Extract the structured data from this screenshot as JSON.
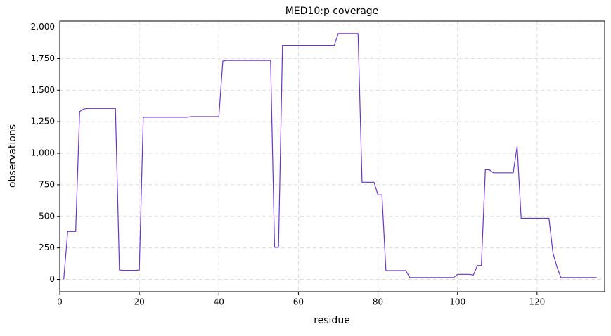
{
  "chart_data": {
    "type": "line",
    "title": "MED10:p coverage",
    "x_label": "residue",
    "y_label": "observations",
    "x": [
      1,
      2,
      3,
      4,
      5,
      6,
      7,
      8,
      9,
      10,
      11,
      12,
      13,
      14,
      15,
      16,
      17,
      18,
      19,
      20,
      21,
      22,
      23,
      24,
      25,
      26,
      27,
      28,
      29,
      30,
      31,
      32,
      33,
      34,
      35,
      36,
      37,
      38,
      39,
      40,
      41,
      42,
      43,
      44,
      45,
      46,
      47,
      48,
      49,
      50,
      51,
      52,
      53,
      54,
      55,
      56,
      57,
      58,
      59,
      60,
      61,
      62,
      63,
      64,
      65,
      66,
      67,
      68,
      69,
      70,
      71,
      72,
      73,
      74,
      75,
      76,
      77,
      78,
      79,
      80,
      81,
      82,
      83,
      84,
      85,
      86,
      87,
      88,
      89,
      90,
      91,
      92,
      93,
      94,
      95,
      96,
      97,
      98,
      99,
      100,
      101,
      102,
      103,
      104,
      105,
      106,
      107,
      108,
      109,
      110,
      111,
      112,
      113,
      114,
      115,
      116,
      117,
      118,
      119,
      120,
      121,
      122,
      123,
      124,
      125,
      126,
      127,
      128,
      129,
      130,
      131,
      132,
      133,
      134,
      135
    ],
    "series": [
      {
        "name": "MED10:p",
        "color": "#6a35c8",
        "values": [
          0,
          380,
          380,
          380,
          1330,
          1350,
          1355,
          1355,
          1355,
          1355,
          1355,
          1355,
          1355,
          1355,
          75,
          72,
          72,
          72,
          72,
          75,
          1285,
          1285,
          1285,
          1285,
          1285,
          1285,
          1285,
          1285,
          1285,
          1285,
          1285,
          1285,
          1290,
          1290,
          1290,
          1290,
          1290,
          1290,
          1290,
          1290,
          1730,
          1735,
          1735,
          1735,
          1735,
          1735,
          1735,
          1735,
          1735,
          1735,
          1735,
          1735,
          1735,
          255,
          255,
          1855,
          1855,
          1855,
          1855,
          1855,
          1855,
          1855,
          1855,
          1855,
          1855,
          1855,
          1855,
          1855,
          1855,
          1948,
          1948,
          1948,
          1948,
          1948,
          1948,
          770,
          770,
          770,
          770,
          670,
          670,
          70,
          70,
          70,
          70,
          70,
          70,
          15,
          15,
          15,
          15,
          15,
          15,
          15,
          15,
          15,
          15,
          15,
          15,
          40,
          40,
          40,
          40,
          35,
          110,
          110,
          870,
          870,
          845,
          845,
          845,
          845,
          845,
          845,
          1055,
          485,
          485,
          485,
          485,
          485,
          485,
          485,
          485,
          210,
          100,
          15,
          15,
          15,
          15,
          15,
          15,
          15,
          15,
          15,
          15
        ]
      }
    ],
    "xlim": [
      0,
      137
    ],
    "ylim": [
      -97.5,
      2047.5
    ],
    "xticks": [
      0,
      20,
      40,
      60,
      80,
      100,
      120
    ],
    "yticks": [
      0,
      250,
      500,
      {
        "value": 750,
        "label": "750"
      },
      {
        "value": 1000,
        "label": "1,000"
      },
      {
        "value": 1250,
        "label": "1,250"
      },
      {
        "value": 1500,
        "label": "1,500"
      },
      {
        "value": 1750,
        "label": "1,750"
      },
      {
        "value": 2000,
        "label": "2,000"
      }
    ],
    "grid": true
  }
}
